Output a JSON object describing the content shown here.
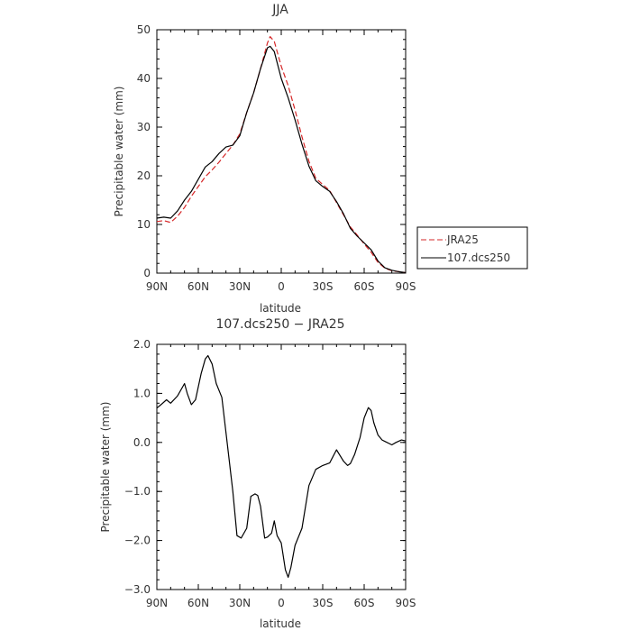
{
  "chart_data": [
    {
      "type": "line",
      "title": "JJA",
      "xlabel": "latitude",
      "ylabel": "Precipitable water (mm)",
      "xlim": [
        90,
        -90
      ],
      "ylim": [
        0,
        50
      ],
      "x_ticks": [
        90,
        60,
        30,
        0,
        -30,
        -60,
        -90
      ],
      "x_tick_labels": [
        "90N",
        "60N",
        "30N",
        "0",
        "30S",
        "60S",
        "90S"
      ],
      "y_ticks": [
        0,
        10,
        20,
        30,
        40,
        50
      ],
      "y_tick_labels": [
        "0",
        "10",
        "20",
        "30",
        "40",
        "50"
      ],
      "legend_position": "right",
      "series": [
        {
          "name": "JRA25",
          "color": "#d62728",
          "dash": "dashed",
          "x": [
            90,
            85,
            80,
            75,
            70,
            65,
            60,
            55,
            50,
            45,
            40,
            35,
            30,
            25,
            20,
            15,
            10,
            8,
            5,
            0,
            -5,
            -10,
            -15,
            -20,
            -25,
            -30,
            -35,
            -40,
            -45,
            -50,
            -55,
            -60,
            -65,
            -70,
            -75,
            -80,
            -85,
            -90
          ],
          "y": [
            10.6,
            10.8,
            10.4,
            11.7,
            13.5,
            15.8,
            17.8,
            19.8,
            21.2,
            22.8,
            24.6,
            26.3,
            28.6,
            33.0,
            37.0,
            42.0,
            47.3,
            48.6,
            47.6,
            42.5,
            38.5,
            33.5,
            28.0,
            23.0,
            19.5,
            18.2,
            17.0,
            14.5,
            12.0,
            9.5,
            7.8,
            6.0,
            4.3,
            2.2,
            1.0,
            0.5,
            0.3,
            0.1
          ]
        },
        {
          "name": "107.dcs250",
          "color": "#000000",
          "dash": "solid",
          "x": [
            90,
            85,
            80,
            75,
            70,
            65,
            60,
            55,
            50,
            45,
            40,
            35,
            30,
            25,
            20,
            15,
            10,
            8,
            5,
            0,
            -5,
            -10,
            -15,
            -20,
            -25,
            -30,
            -35,
            -40,
            -45,
            -50,
            -55,
            -60,
            -65,
            -70,
            -75,
            -80,
            -85,
            -90
          ],
          "y": [
            11.3,
            11.5,
            11.3,
            12.8,
            15.0,
            16.8,
            19.3,
            21.8,
            22.9,
            24.6,
            25.9,
            26.3,
            28.2,
            33.0,
            37.0,
            42.0,
            46.3,
            46.6,
            45.5,
            40.0,
            36.0,
            31.5,
            26.5,
            22.0,
            19.0,
            17.8,
            16.8,
            14.7,
            12.2,
            9.2,
            7.6,
            6.2,
            4.8,
            2.5,
            1.1,
            0.6,
            0.3,
            0.1
          ]
        }
      ]
    },
    {
      "type": "line",
      "title": "107.dcs250 − JRA25",
      "xlabel": "latitude",
      "ylabel": "Precipitable water (mm)",
      "xlim": [
        90,
        -90
      ],
      "ylim": [
        -3.0,
        2.0
      ],
      "x_ticks": [
        90,
        60,
        30,
        0,
        -30,
        -60,
        -90
      ],
      "x_tick_labels": [
        "90N",
        "60N",
        "30N",
        "0",
        "30S",
        "60S",
        "90S"
      ],
      "y_ticks": [
        -3,
        -2,
        -1,
        0,
        1,
        2
      ],
      "y_tick_labels": [
        "−3.0",
        "−2.0",
        "−1.0",
        "0.0",
        "1.0",
        "2.0"
      ],
      "series": [
        {
          "color": "#000000",
          "dash": "solid",
          "x": [
            90,
            87,
            83,
            80,
            75,
            70,
            68,
            65,
            62,
            58,
            55,
            53,
            50,
            47,
            43,
            40,
            35,
            32,
            29,
            25,
            22,
            19,
            17,
            15,
            12,
            10,
            7,
            5,
            3,
            0,
            -3,
            -5,
            -7,
            -10,
            -15,
            -20,
            -25,
            -30,
            -35,
            -40,
            -45,
            -48,
            -50,
            -53,
            -57,
            -60,
            -63,
            -65,
            -67,
            -70,
            -73,
            -75,
            -80,
            -83,
            -87,
            -90
          ],
          "y": [
            0.7,
            0.77,
            0.87,
            0.8,
            0.95,
            1.2,
            1.0,
            0.77,
            0.87,
            1.4,
            1.7,
            1.77,
            1.6,
            1.2,
            0.92,
            0.2,
            -1.0,
            -1.9,
            -1.95,
            -1.75,
            -1.1,
            -1.05,
            -1.08,
            -1.3,
            -1.95,
            -1.93,
            -1.85,
            -1.6,
            -1.9,
            -2.05,
            -2.6,
            -2.75,
            -2.55,
            -2.1,
            -1.75,
            -0.88,
            -0.55,
            -0.47,
            -0.42,
            -0.15,
            -0.38,
            -0.47,
            -0.43,
            -0.25,
            0.1,
            0.5,
            0.71,
            0.65,
            0.4,
            0.15,
            0.05,
            0.02,
            -0.05,
            0.0,
            0.05,
            0.03
          ]
        }
      ]
    }
  ]
}
